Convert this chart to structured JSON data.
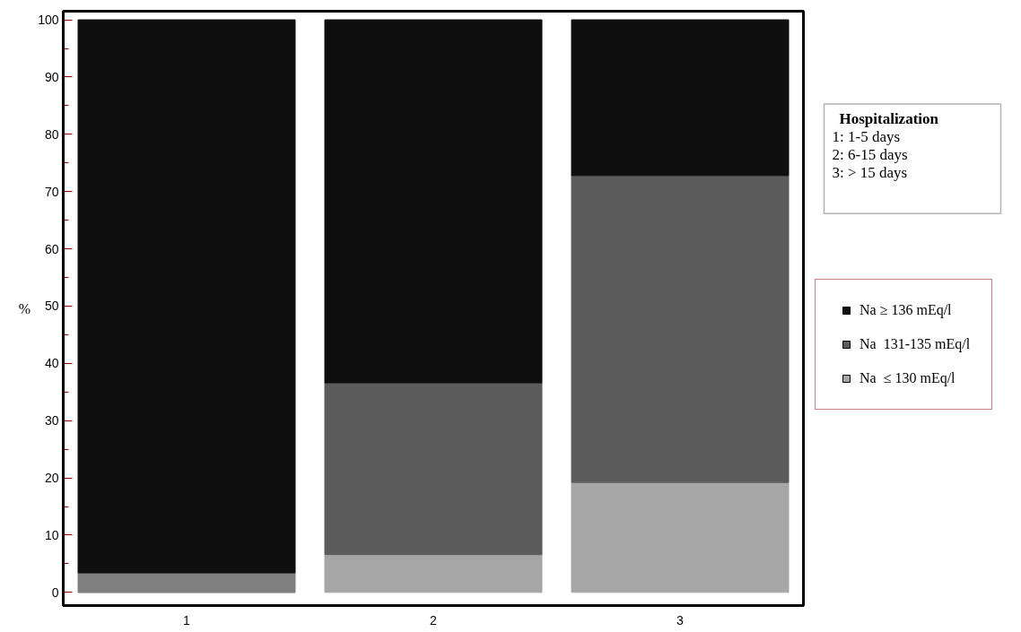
{
  "chart_data": {
    "type": "bar",
    "stacked": true,
    "categories": [
      "1",
      "2",
      "3"
    ],
    "series": [
      {
        "name": "Na  ≤ 130 mEq/l",
        "color": "#a6a6a6",
        "values": [
          0,
          6.6,
          19.2
        ]
      },
      {
        "name": "Na  131-135 mEq/l",
        "color": "#5c5c5c",
        "colors": [
          "#808080",
          "#5c5c5c",
          "#5c5c5c"
        ],
        "values": [
          3.4,
          30,
          53.6
        ]
      },
      {
        "name": "Na ≥ 136 mEq/l",
        "color": "#0f0f0f",
        "values": [
          96.6,
          63.4,
          27.2
        ]
      }
    ],
    "ylabel": "%",
    "ylim": [
      -2.3,
      101.5
    ],
    "yticks": [
      0,
      10,
      20,
      30,
      40,
      50,
      60,
      70,
      80,
      90,
      100
    ],
    "grid": false,
    "legend": "right",
    "annotations": [
      "Hospitalization",
      "1: 1-5 days",
      "2: 6-15 days",
      "3: > 15 days"
    ]
  }
}
